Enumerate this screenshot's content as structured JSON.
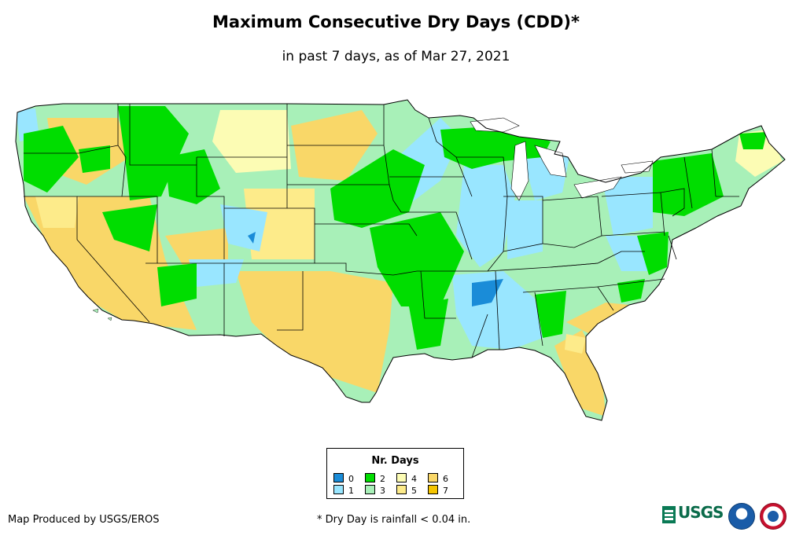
{
  "title": "Maximum Consecutive Dry Days (CDD)*",
  "subtitle": "in past 7 days, as of Mar 27, 2021",
  "legend": {
    "title": "Nr. Days",
    "items": [
      {
        "label": "0",
        "color": "#1a8cd8"
      },
      {
        "label": "1",
        "color": "#99e6ff"
      },
      {
        "label": "2",
        "color": "#00dd00"
      },
      {
        "label": "3",
        "color": "#a8f0b8"
      },
      {
        "label": "4",
        "color": "#fcfcb4"
      },
      {
        "label": "5",
        "color": "#fdeb8a"
      },
      {
        "label": "6",
        "color": "#f9d768"
      },
      {
        "label": "7",
        "color": "#f5c500"
      }
    ]
  },
  "credit": "Map Produced by USGS/EROS",
  "footnote": "* Dry Day is rainfall < 0.04 in.",
  "logos": {
    "usgs": "USGS"
  },
  "map": {
    "outline_color": "#000000",
    "background_color": "#ffffff"
  }
}
